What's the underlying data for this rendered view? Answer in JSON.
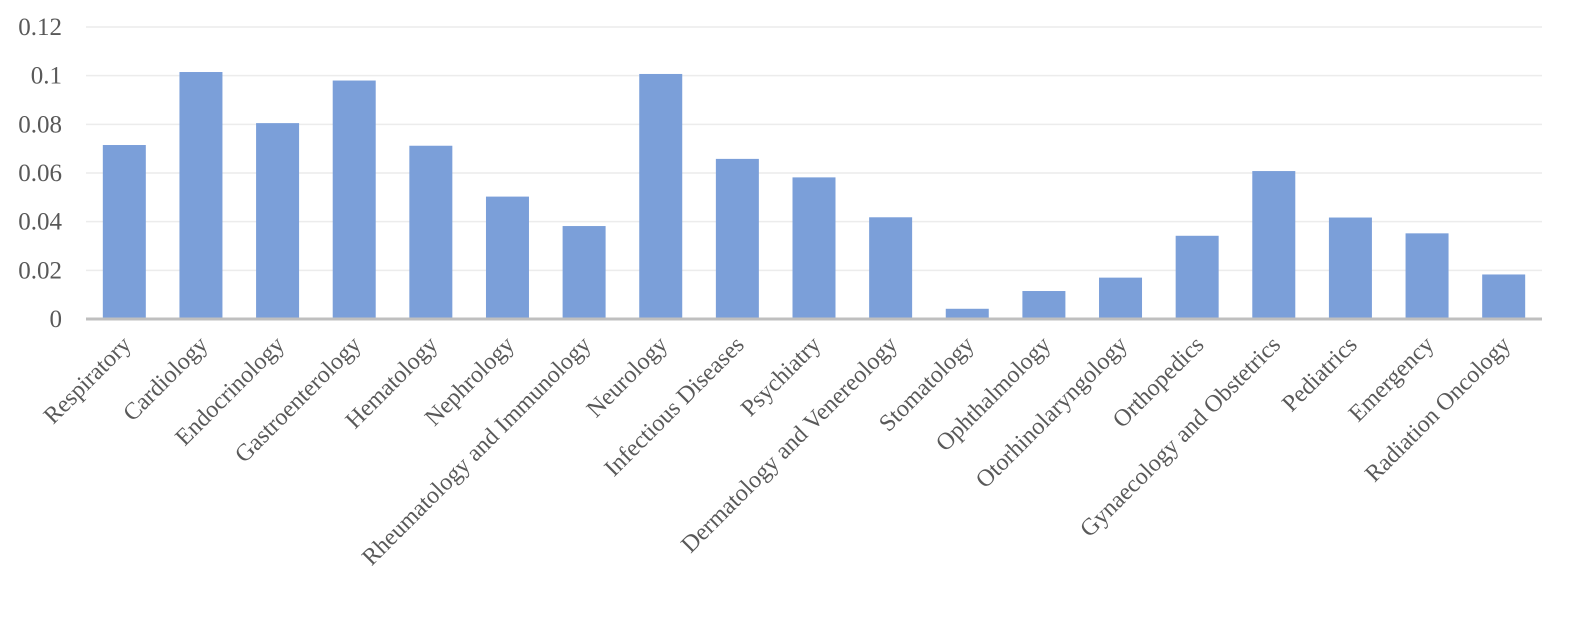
{
  "chart_data": {
    "type": "bar",
    "categories": [
      "Respiratory",
      "Cardiology",
      "Endocrinology",
      "Gastroenterology",
      "Hematology",
      "Nephrology",
      "Rheumatology and Immunology",
      "Neurology",
      "Infectious Diseases",
      "Psychiatry",
      "Dermatology and Venereology",
      "Stomatology",
      "Ophthalmology",
      "Otorhinolaryngology",
      "Orthopedics",
      "Gynaecology and Obstetrics",
      "Pediatrics",
      "Emergency",
      "Radiation Oncology"
    ],
    "values": [
      0.0715,
      0.1015,
      0.0805,
      0.098,
      0.0712,
      0.0503,
      0.0382,
      0.1007,
      0.0658,
      0.0582,
      0.0418,
      0.0042,
      0.0115,
      0.017,
      0.0342,
      0.0608,
      0.0417,
      0.0352,
      0.0183
    ],
    "yticks": [
      "0",
      "0.02",
      "0.04",
      "0.06",
      "0.08",
      "0.1",
      "0.12"
    ],
    "ylim": [
      0,
      0.12
    ],
    "title": "",
    "xlabel": "",
    "ylabel": "",
    "grid": true,
    "legend": "none",
    "bar_color": "#7b9fd9"
  }
}
